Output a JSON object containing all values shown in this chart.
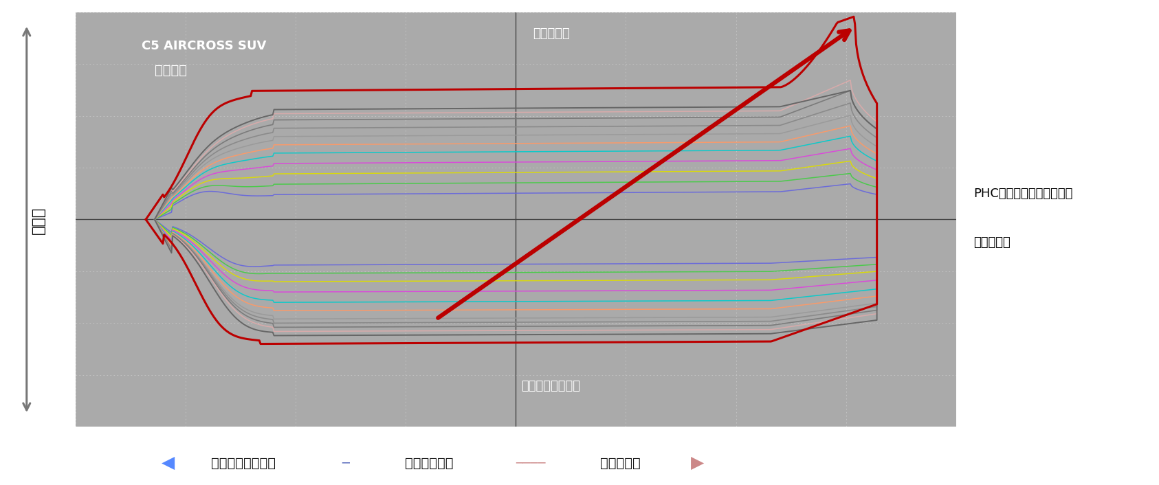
{
  "title_line1": "C5 AIRCROSS SUV",
  "title_line2": "フロント",
  "rebound_label": "リバウンド",
  "compression_label": "コンプレッション",
  "damping_label": "減衰力",
  "annotation_line1": "PHCセカンダリーダンパー",
  "annotation_line2": "による増加",
  "xlabel_compression": "コンプレッション",
  "xlabel_piston": "ピストン位置",
  "xlabel_rebound": "リバウンド",
  "fig_bg_color": "#ffffff",
  "plot_bg_color": "#aaaaaa",
  "grid_color": "#bbbbbb",
  "grid_dot_color": "#c8c8c8"
}
